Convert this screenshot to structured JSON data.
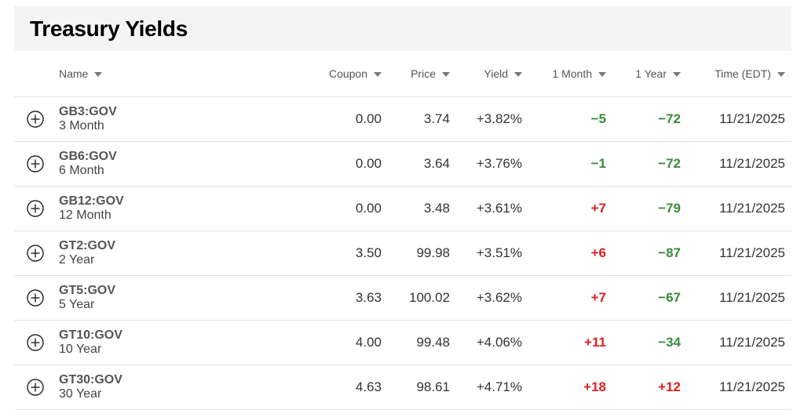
{
  "title": "Treasury Yields",
  "colors": {
    "negative_change": "#3c8a3c",
    "positive_change": "#dd2222",
    "title_bar_bg": "#f4f4f4"
  },
  "columns": {
    "name": "Name",
    "coupon": "Coupon",
    "price": "Price",
    "yield": "Yield",
    "month": "1 Month",
    "year": "1 Year",
    "time": "Time (EDT)"
  },
  "rows": [
    {
      "symbol": "GB3:GOV",
      "desc": "3 Month",
      "coupon": "0.00",
      "price": "3.74",
      "yield": "+3.82%",
      "month": "−5",
      "year": "−72",
      "time": "11/21/2025"
    },
    {
      "symbol": "GB6:GOV",
      "desc": "6 Month",
      "coupon": "0.00",
      "price": "3.64",
      "yield": "+3.76%",
      "month": "−1",
      "year": "−72",
      "time": "11/21/2025"
    },
    {
      "symbol": "GB12:GOV",
      "desc": "12 Month",
      "coupon": "0.00",
      "price": "3.48",
      "yield": "+3.61%",
      "month": "+7",
      "year": "−79",
      "time": "11/21/2025"
    },
    {
      "symbol": "GT2:GOV",
      "desc": "2 Year",
      "coupon": "3.50",
      "price": "99.98",
      "yield": "+3.51%",
      "month": "+6",
      "year": "−87",
      "time": "11/21/2025"
    },
    {
      "symbol": "GT5:GOV",
      "desc": "5 Year",
      "coupon": "3.63",
      "price": "100.02",
      "yield": "+3.62%",
      "month": "+7",
      "year": "−67",
      "time": "11/21/2025"
    },
    {
      "symbol": "GT10:GOV",
      "desc": "10 Year",
      "coupon": "4.00",
      "price": "99.48",
      "yield": "+4.06%",
      "month": "+11",
      "year": "−34",
      "time": "11/21/2025"
    },
    {
      "symbol": "GT30:GOV",
      "desc": "30 Year",
      "coupon": "4.63",
      "price": "98.61",
      "yield": "+4.71%",
      "month": "+18",
      "year": "+12",
      "time": "11/21/2025"
    }
  ]
}
